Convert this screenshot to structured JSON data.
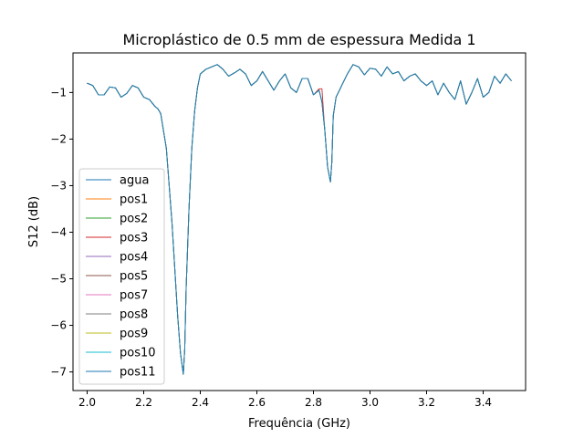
{
  "chart_data": {
    "type": "line",
    "title": "Microplástico de 0.5 mm de espessura Medida 1",
    "xlabel": "Frequência (GHz)",
    "ylabel": "S12 (dB)",
    "xlim": [
      1.95,
      3.55
    ],
    "ylim": [
      -7.4,
      -0.15
    ],
    "xticks": [
      2.0,
      2.2,
      2.4,
      2.6,
      2.8,
      3.0,
      3.2,
      3.4
    ],
    "xtick_labels": [
      "2.0",
      "2.2",
      "2.4",
      "2.6",
      "2.8",
      "3.0",
      "3.2",
      "3.4"
    ],
    "yticks": [
      -1,
      -2,
      -3,
      -4,
      -5,
      -6,
      -7
    ],
    "ytick_labels": [
      "−1",
      "−2",
      "−3",
      "−4",
      "−5",
      "−6",
      "−7"
    ],
    "grid": false,
    "legend_position": "lower-left",
    "x": [
      2.0,
      2.02,
      2.04,
      2.06,
      2.08,
      2.1,
      2.12,
      2.14,
      2.16,
      2.18,
      2.2,
      2.22,
      2.24,
      2.25,
      2.26,
      2.28,
      2.3,
      2.31,
      2.32,
      2.33,
      2.34,
      2.345,
      2.35,
      2.36,
      2.37,
      2.38,
      2.39,
      2.4,
      2.42,
      2.44,
      2.46,
      2.48,
      2.5,
      2.52,
      2.54,
      2.56,
      2.58,
      2.6,
      2.62,
      2.64,
      2.66,
      2.68,
      2.7,
      2.72,
      2.74,
      2.76,
      2.78,
      2.8,
      2.82,
      2.83,
      2.84,
      2.85,
      2.86,
      2.865,
      2.87,
      2.88,
      2.9,
      2.92,
      2.94,
      2.96,
      2.98,
      3.0,
      3.02,
      3.04,
      3.06,
      3.08,
      3.1,
      3.12,
      3.14,
      3.16,
      3.18,
      3.2,
      3.22,
      3.24,
      3.26,
      3.28,
      3.3,
      3.32,
      3.34,
      3.36,
      3.38,
      3.4,
      3.42,
      3.44,
      3.46,
      3.48,
      3.5
    ],
    "series": [
      {
        "name": "agua",
        "color": "#1f77b4",
        "y": [
          -0.8,
          -0.85,
          -1.05,
          -1.05,
          -0.88,
          -0.9,
          -1.1,
          -1.02,
          -0.85,
          -0.9,
          -1.1,
          -1.15,
          -1.3,
          -1.35,
          -1.45,
          -2.2,
          -3.8,
          -4.8,
          -5.8,
          -6.6,
          -7.05,
          -6.5,
          -5.2,
          -3.5,
          -2.2,
          -1.4,
          -0.9,
          -0.6,
          -0.5,
          -0.45,
          -0.4,
          -0.5,
          -0.65,
          -0.58,
          -0.5,
          -0.6,
          -0.85,
          -0.75,
          -0.55,
          -0.75,
          -0.95,
          -0.75,
          -0.6,
          -0.9,
          -1.0,
          -0.7,
          -0.7,
          -1.05,
          -0.95,
          -1.2,
          -1.8,
          -2.6,
          -2.92,
          -2.5,
          -1.5,
          -1.1,
          -0.85,
          -0.6,
          -0.4,
          -0.45,
          -0.62,
          -0.48,
          -0.5,
          -0.65,
          -0.45,
          -0.6,
          -0.55,
          -0.75,
          -0.65,
          -0.6,
          -0.75,
          -0.85,
          -0.75,
          -1.05,
          -0.8,
          -1.0,
          -1.15,
          -0.75,
          -1.25,
          -1.0,
          -0.7,
          -1.1,
          -1.0,
          -0.65,
          -0.8,
          -0.6,
          -0.75
        ]
      },
      {
        "name": "pos1",
        "color": "#ff7f0e"
      },
      {
        "name": "pos2",
        "color": "#2ca02c"
      },
      {
        "name": "pos3",
        "color": "#d62728"
      },
      {
        "name": "pos4",
        "color": "#9467bd"
      },
      {
        "name": "pos5",
        "color": "#8c564b"
      },
      {
        "name": "pos7",
        "color": "#e377c2"
      },
      {
        "name": "pos8",
        "color": "#7f7f7f"
      },
      {
        "name": "pos9",
        "color": "#bcbd22"
      },
      {
        "name": "pos10",
        "color": "#17becf"
      },
      {
        "name": "pos11",
        "color": "#1f77b4"
      }
    ]
  }
}
